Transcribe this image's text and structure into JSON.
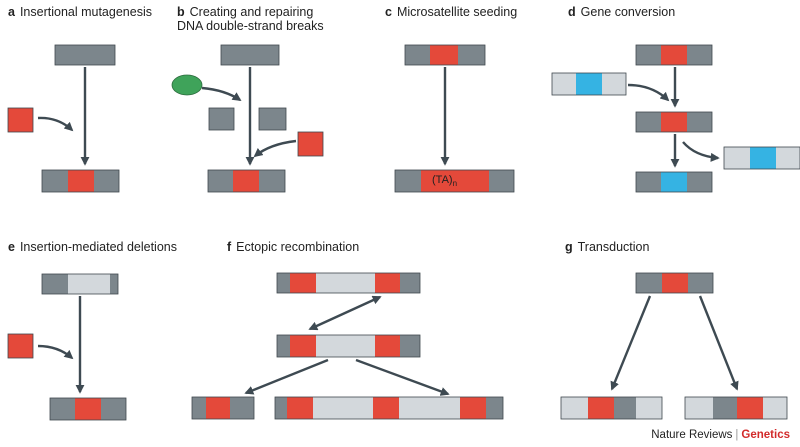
{
  "colors": {
    "grey_block": "#7c868c",
    "light_block": "#d3d8dc",
    "red_insert": "#e4493a",
    "blue_segment": "#35b3e3",
    "arrow": "#3e4a52",
    "enzyme_green": "#3fa35a",
    "credit_red": "#d22b2b"
  },
  "panels": [
    {
      "letter": "a",
      "title": "Insertional mutagenesis"
    },
    {
      "letter": "b",
      "title": "Creating and repairing DNA double-strand breaks"
    },
    {
      "letter": "c",
      "title": "Microsatellite seeding"
    },
    {
      "letter": "d",
      "title": "Gene conversion"
    },
    {
      "letter": "e",
      "title": "Insertion-mediated deletions"
    },
    {
      "letter": "f",
      "title": "Ectopic recombination"
    },
    {
      "letter": "g",
      "title": "Transduction"
    }
  ],
  "microsatellite_label": {
    "base": "(TA)",
    "subscript": "n"
  },
  "credit": {
    "journal": "Nature Reviews",
    "separator": "|",
    "section": "Genetics"
  }
}
